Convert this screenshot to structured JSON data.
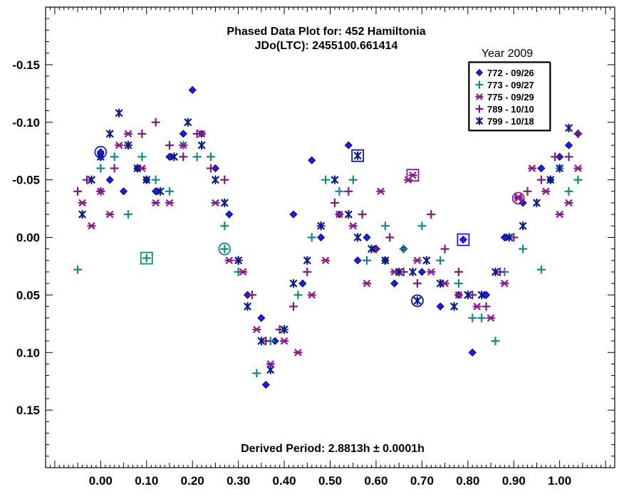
{
  "chart_data": {
    "type": "scatter",
    "title": "Phased Data Plot for: 452 Hamiltonia",
    "subtitle": "JDo(LTC): 2455100.661414",
    "annotation": "Derived Period: 2.8813h  ± 0.0001h",
    "legend_title": "Year 2009",
    "legend_position": "top-right",
    "xlim": [
      -0.12,
      1.12
    ],
    "ylim": [
      -0.2,
      0.2
    ],
    "y_inverted": true,
    "x_ticks": [
      "0.00",
      "0.10",
      "0.20",
      "0.30",
      "0.40",
      "0.50",
      "0.60",
      "0.70",
      "0.80",
      "0.90",
      "1.00"
    ],
    "y_ticks": [
      "-0.15",
      "-0.10",
      "-0.05",
      "0.00",
      "0.05",
      "0.10",
      "0.15"
    ],
    "series": [
      {
        "name": "772 - 09/26",
        "marker": "diamond",
        "color": "#1a1aff",
        "x": [
          0.0,
          0.02,
          0.05,
          0.08,
          0.1,
          0.12,
          0.15,
          0.18,
          0.2,
          0.22,
          0.25,
          0.28,
          0.32,
          0.35,
          0.36,
          0.38,
          0.42,
          0.44,
          0.46,
          0.48,
          0.52,
          0.54,
          0.56,
          0.58,
          0.6,
          0.62,
          0.64,
          0.66,
          0.7,
          0.74,
          0.78,
          0.81,
          0.84,
          0.88,
          0.92,
          0.96,
          0.98,
          1.0,
          1.02,
          1.04
        ],
        "y": [
          -0.07,
          -0.05,
          -0.04,
          -0.06,
          -0.05,
          -0.04,
          -0.07,
          -0.09,
          -0.128,
          -0.09,
          -0.06,
          -0.02,
          0.05,
          0.07,
          0.128,
          0.09,
          -0.02,
          0.04,
          -0.067,
          0.0,
          -0.02,
          -0.08,
          0.02,
          0.0,
          0.01,
          0.02,
          0.04,
          0.01,
          0.03,
          0.06,
          0.05,
          0.1,
          0.05,
          0.0,
          -0.03,
          -0.06,
          -0.05,
          -0.07,
          -0.08,
          -0.09
        ]
      },
      {
        "name": "773 - 09/27",
        "marker": "plus",
        "color": "#128a82",
        "x": [
          -0.05,
          0.0,
          0.03,
          0.06,
          0.09,
          0.12,
          0.15,
          0.18,
          0.21,
          0.24,
          0.27,
          0.3,
          0.34,
          0.37,
          0.4,
          0.43,
          0.46,
          0.49,
          0.52,
          0.55,
          0.58,
          0.62,
          0.66,
          0.7,
          0.74,
          0.78,
          0.81,
          0.83,
          0.86,
          0.88,
          0.92,
          0.96,
          1.0,
          1.02,
          1.04
        ],
        "y": [
          0.028,
          -0.06,
          -0.07,
          -0.02,
          -0.07,
          -0.05,
          -0.04,
          -0.08,
          -0.07,
          -0.07,
          -0.01,
          0.03,
          0.118,
          0.09,
          0.08,
          0.05,
          0.0,
          -0.05,
          -0.04,
          -0.05,
          0.02,
          -0.01,
          0.01,
          -0.01,
          0.02,
          0.04,
          0.07,
          0.07,
          0.09,
          0.03,
          0.01,
          0.028,
          -0.06,
          -0.04,
          -0.05
        ]
      },
      {
        "name": "775 - 09/29",
        "marker": "asterisk",
        "color": "#8b1a8b",
        "x": [
          -0.04,
          -0.02,
          0.0,
          0.02,
          0.04,
          0.06,
          0.09,
          0.12,
          0.15,
          0.18,
          0.22,
          0.25,
          0.28,
          0.31,
          0.34,
          0.37,
          0.4,
          0.43,
          0.46,
          0.49,
          0.52,
          0.55,
          0.58,
          0.61,
          0.64,
          0.67,
          0.69,
          0.72,
          0.75,
          0.78,
          0.82,
          0.85,
          0.88,
          0.91,
          0.94,
          0.97,
          1.0,
          1.02,
          1.04
        ],
        "y": [
          -0.03,
          -0.01,
          -0.04,
          -0.02,
          -0.08,
          -0.09,
          -0.06,
          -0.03,
          -0.03,
          -0.08,
          -0.09,
          -0.03,
          0.02,
          0.03,
          0.08,
          0.11,
          0.09,
          0.1,
          0.05,
          0.02,
          -0.02,
          -0.01,
          0.04,
          -0.04,
          0.03,
          -0.05,
          0.02,
          0.03,
          0.04,
          0.05,
          0.06,
          0.07,
          0.04,
          -0.035,
          -0.06,
          -0.04,
          -0.02,
          -0.03,
          -0.06
        ]
      },
      {
        "name": "789 - 10/10",
        "marker": "plus",
        "color": "#7a1a7a",
        "x": [
          -0.05,
          -0.03,
          0.0,
          0.03,
          0.06,
          0.09,
          0.12,
          0.15,
          0.18,
          0.21,
          0.24,
          0.27,
          0.3,
          0.33,
          0.36,
          0.39,
          0.42,
          0.45,
          0.48,
          0.51,
          0.54,
          0.57,
          0.6,
          0.63,
          0.66,
          0.69,
          0.72,
          0.75,
          0.78,
          0.81,
          0.84,
          0.87,
          0.9,
          0.93,
          0.96,
          0.99,
          1.02,
          1.04
        ],
        "y": [
          -0.04,
          -0.05,
          -0.04,
          -0.06,
          -0.08,
          -0.09,
          -0.1,
          -0.08,
          -0.07,
          -0.09,
          -0.06,
          -0.05,
          0.02,
          0.05,
          0.09,
          0.08,
          0.06,
          0.03,
          -0.01,
          -0.03,
          -0.04,
          -0.02,
          0.01,
          0.0,
          0.03,
          0.04,
          -0.02,
          0.01,
          0.03,
          0.05,
          0.06,
          0.03,
          0.0,
          -0.04,
          -0.05,
          -0.07,
          -0.07,
          -0.09
        ]
      },
      {
        "name": "799 - 10/18",
        "marker": "star",
        "color": "#0a1a8b",
        "x": [
          -0.04,
          -0.02,
          0.0,
          0.02,
          0.04,
          0.06,
          0.08,
          0.1,
          0.13,
          0.16,
          0.19,
          0.22,
          0.25,
          0.27,
          0.3,
          0.32,
          0.35,
          0.37,
          0.4,
          0.42,
          0.45,
          0.48,
          0.51,
          0.54,
          0.56,
          0.59,
          0.62,
          0.65,
          0.68,
          0.71,
          0.74,
          0.77,
          0.8,
          0.83,
          0.86,
          0.89,
          0.92,
          0.95,
          0.98,
          1.0,
          1.02
        ],
        "y": [
          -0.02,
          -0.05,
          -0.07,
          -0.09,
          -0.108,
          -0.08,
          -0.06,
          -0.05,
          -0.04,
          -0.07,
          -0.1,
          -0.08,
          -0.05,
          -0.03,
          0.02,
          0.06,
          0.09,
          0.115,
          0.08,
          0.04,
          0.02,
          -0.01,
          -0.05,
          -0.02,
          0.0,
          0.01,
          0.02,
          0.03,
          0.03,
          0.02,
          0.04,
          0.06,
          0.05,
          0.05,
          0.03,
          0.0,
          -0.01,
          -0.03,
          -0.05,
          -0.06,
          -0.095
        ]
      }
    ],
    "highlighted": [
      {
        "shape": "circle",
        "series": "772 - 09/26",
        "x": 0.0,
        "y": -0.074
      },
      {
        "shape": "square",
        "series": "773 - 09/27",
        "x": 0.1,
        "y": 0.018
      },
      {
        "shape": "circle",
        "series": "773 - 09/27",
        "x": 0.27,
        "y": 0.01
      },
      {
        "shape": "square",
        "series": "775 - 09/29",
        "x": 0.68,
        "y": -0.054
      },
      {
        "shape": "circle",
        "series": "775 - 09/29",
        "x": 0.91,
        "y": -0.034
      },
      {
        "shape": "square",
        "series": "799 - 10/18",
        "x": 0.56,
        "y": -0.071
      },
      {
        "shape": "square",
        "series": "772 - 09/26",
        "x": 0.79,
        "y": 0.002
      },
      {
        "shape": "circle",
        "series": "799 - 10/18",
        "x": 0.69,
        "y": 0.055
      }
    ]
  }
}
